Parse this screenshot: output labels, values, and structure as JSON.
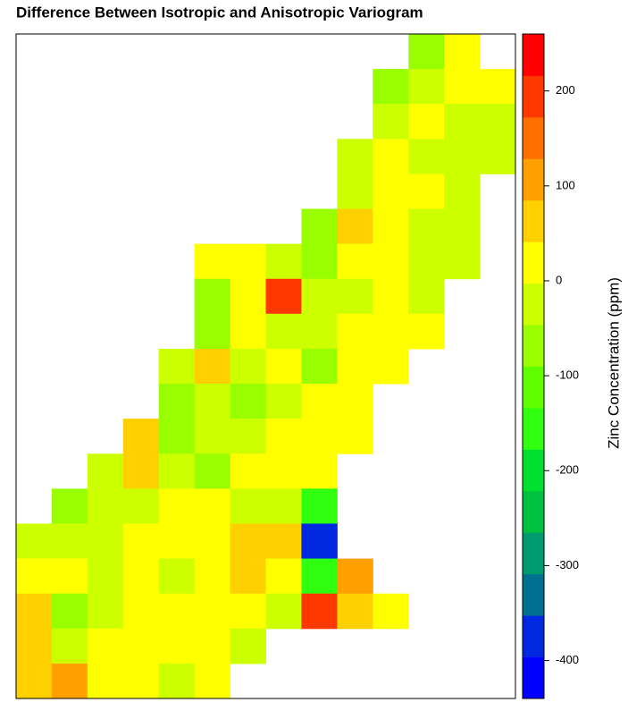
{
  "chart_data": {
    "type": "raster",
    "title": "Difference Between Isotropic and Anisotropic Variogram",
    "zlabel": "Zinc Concentration (ppm)",
    "zlim": [
      -440,
      260
    ],
    "zticks": [
      200,
      100,
      0,
      -100,
      -200,
      -300,
      -400
    ],
    "colors": [
      "#0000ff",
      "#0028e0",
      "#007090",
      "#009a70",
      "#00c040",
      "#00e030",
      "#30ff10",
      "#60ff00",
      "#99ff00",
      "#ccff00",
      "#ffff00",
      "#ffd000",
      "#ffa000",
      "#ff7000",
      "#ff3800",
      "#ff0000"
    ],
    "grid": [
      [
        null,
        null,
        null,
        null,
        null,
        null,
        null,
        null,
        null,
        null,
        null,
        -90,
        10,
        null
      ],
      [
        null,
        null,
        null,
        null,
        null,
        null,
        null,
        null,
        null,
        null,
        -60,
        -20,
        10,
        10
      ],
      [
        null,
        null,
        null,
        null,
        null,
        null,
        null,
        null,
        null,
        null,
        -30,
        20,
        -10,
        -20
      ],
      [
        null,
        null,
        null,
        null,
        null,
        null,
        null,
        null,
        null,
        -20,
        10,
        -30,
        -40,
        -30
      ],
      [
        null,
        null,
        null,
        null,
        null,
        null,
        null,
        null,
        null,
        -40,
        20,
        0,
        -20,
        null
      ],
      [
        null,
        null,
        null,
        null,
        null,
        null,
        null,
        null,
        -60,
        50,
        20,
        -20,
        -30,
        null
      ],
      [
        null,
        null,
        null,
        null,
        null,
        40,
        30,
        -40,
        -60,
        20,
        10,
        -20,
        -30,
        null
      ],
      [
        null,
        null,
        null,
        null,
        null,
        -60,
        30,
        200,
        -20,
        -40,
        20,
        -10,
        null,
        null
      ],
      [
        null,
        null,
        null,
        null,
        null,
        -50,
        30,
        -20,
        -30,
        10,
        20,
        10,
        null,
        null
      ],
      [
        null,
        null,
        null,
        null,
        -20,
        60,
        -30,
        10,
        -60,
        20,
        30,
        null,
        null,
        null
      ],
      [
        null,
        null,
        null,
        null,
        -50,
        -40,
        -70,
        -40,
        20,
        10,
        null,
        null,
        null,
        null
      ],
      [
        null,
        null,
        null,
        70,
        -60,
        -40,
        -30,
        30,
        20,
        20,
        null,
        null,
        null,
        null
      ],
      [
        null,
        null,
        -30,
        80,
        -20,
        -50,
        20,
        30,
        20,
        null,
        null,
        null,
        null,
        null
      ],
      [
        null,
        -60,
        -40,
        -20,
        30,
        10,
        -20,
        -30,
        -150,
        null,
        null,
        null,
        null,
        null
      ],
      [
        -40,
        -20,
        -30,
        10,
        20,
        30,
        70,
        60,
        -380,
        null,
        null,
        null,
        null,
        null
      ],
      [
        30,
        20,
        -40,
        10,
        -30,
        20,
        80,
        40,
        -150,
        120,
        null,
        null,
        null,
        null
      ],
      [
        80,
        -60,
        -20,
        20,
        30,
        20,
        0,
        -10,
        200,
        60,
        30,
        null,
        null,
        null
      ],
      [
        70,
        -20,
        10,
        30,
        20,
        0,
        -20,
        null,
        null,
        null,
        null,
        null,
        null,
        null
      ],
      [
        60,
        90,
        20,
        40,
        -10,
        10,
        null,
        null,
        null,
        null,
        null,
        null,
        null,
        null
      ]
    ]
  }
}
